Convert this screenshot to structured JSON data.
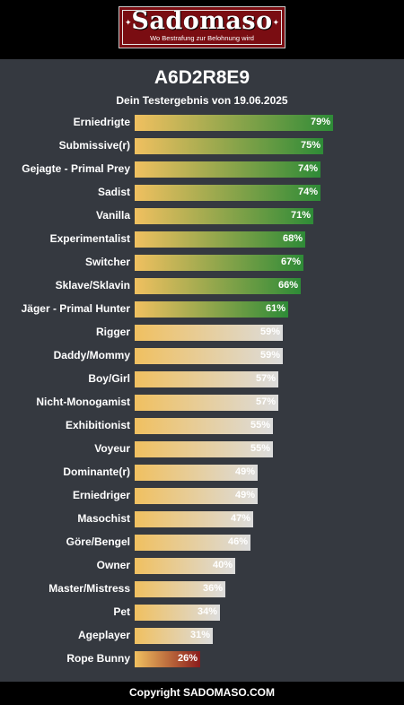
{
  "brand": {
    "name": "Sadomaso",
    "tagline": "Wo Bestrafung zur Belohnung wird"
  },
  "header": {
    "title": "A6D2R8E9",
    "subtitle": "Dein Testergebnis von 19.06.2025"
  },
  "colors": {
    "green_end": "#2e8b37",
    "grey_end": "#dcdcdc",
    "red_end": "#8b1c1c",
    "start": "#f0c060"
  },
  "results": [
    {
      "label": "Erniedrigte",
      "value": 79,
      "color": "green"
    },
    {
      "label": "Submissive(r)",
      "value": 75,
      "color": "green"
    },
    {
      "label": "Gejagte - Primal Prey",
      "value": 74,
      "color": "green"
    },
    {
      "label": "Sadist",
      "value": 74,
      "color": "green"
    },
    {
      "label": "Vanilla",
      "value": 71,
      "color": "green"
    },
    {
      "label": "Experimentalist",
      "value": 68,
      "color": "green"
    },
    {
      "label": "Switcher",
      "value": 67,
      "color": "green"
    },
    {
      "label": "Sklave/Sklavin",
      "value": 66,
      "color": "green"
    },
    {
      "label": "Jäger - Primal Hunter",
      "value": 61,
      "color": "green"
    },
    {
      "label": "Rigger",
      "value": 59,
      "color": "grey"
    },
    {
      "label": "Daddy/Mommy",
      "value": 59,
      "color": "grey"
    },
    {
      "label": "Boy/Girl",
      "value": 57,
      "color": "grey"
    },
    {
      "label": "Nicht-Monogamist",
      "value": 57,
      "color": "grey"
    },
    {
      "label": "Exhibitionist",
      "value": 55,
      "color": "grey"
    },
    {
      "label": "Voyeur",
      "value": 55,
      "color": "grey"
    },
    {
      "label": "Dominante(r)",
      "value": 49,
      "color": "grey"
    },
    {
      "label": "Erniedriger",
      "value": 49,
      "color": "grey"
    },
    {
      "label": "Masochist",
      "value": 47,
      "color": "grey"
    },
    {
      "label": "Göre/Bengel",
      "value": 46,
      "color": "grey"
    },
    {
      "label": "Owner",
      "value": 40,
      "color": "grey"
    },
    {
      "label": "Master/Mistress",
      "value": 36,
      "color": "grey"
    },
    {
      "label": "Pet",
      "value": 34,
      "color": "grey"
    },
    {
      "label": "Ageplayer",
      "value": 31,
      "color": "grey"
    },
    {
      "label": "Rope Bunny",
      "value": 26,
      "color": "red"
    }
  ],
  "footer": {
    "copyright": "Copyright SADOMASO.COM"
  }
}
